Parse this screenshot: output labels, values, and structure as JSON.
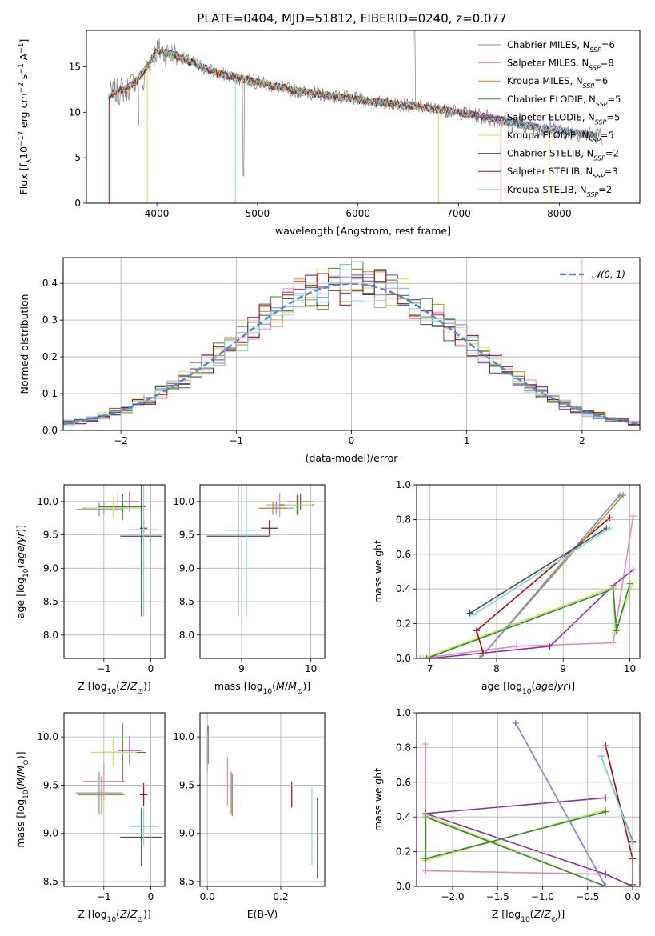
{
  "title": "PLATE=0404, MJD=51812, FIBERID=0240, z=0.077",
  "colors": {
    "chab_miles": "#6f8fdc",
    "salp_miles": "#e38ac0",
    "krou_miles": "#c48a1a",
    "chab_elodie": "#2e8b2e",
    "salp_elodie": "#8e2ea8",
    "krou_elodie": "#c8e650",
    "chab_stelib": "#4a4a4a",
    "salp_stelib": "#b00a0a",
    "krou_stelib": "#84d8e8",
    "data": "#808080",
    "normal": "#4f86d8",
    "grid": "#b0b0b0"
  },
  "chart_data": [
    {
      "id": "spectrum",
      "type": "line",
      "title": "PLATE=0404, MJD=51812, FIBERID=0240, z=0.077",
      "xlabel": "wavelength [Angstrom, rest frame]",
      "ylabel": "Flux [f_λ10^-17 erg cm^-2 s^-1 A^-1]",
      "xlim": [
        3300,
        8800
      ],
      "ylim": [
        0,
        19
      ],
      "xticks": [
        4000,
        5000,
        6000,
        7000,
        8000
      ],
      "yticks": [
        0,
        5,
        10,
        15
      ],
      "grid": false,
      "legend_placement": "top-right",
      "continuum": {
        "x": [
          3520,
          3600,
          3700,
          3800,
          3900,
          4000,
          4200,
          4400,
          4600,
          4800,
          5000,
          5200,
          5400,
          5600,
          5800,
          6000,
          6200,
          6400,
          6600,
          6800,
          7000,
          7200,
          7400,
          7600,
          7800,
          8000,
          8200,
          8400
        ],
        "y": [
          11.8,
          12.2,
          12.6,
          13.5,
          15.0,
          16.8,
          16.2,
          15.2,
          14.3,
          13.8,
          13.3,
          12.8,
          12.3,
          12.0,
          11.7,
          11.4,
          11.1,
          10.9,
          10.6,
          10.3,
          10.0,
          9.6,
          9.2,
          8.7,
          8.3,
          8.0,
          7.7,
          7.4
        ]
      },
      "series": [
        {
          "name": "Chabrier MILES, N_SSP=6",
          "color_key": "chab_miles"
        },
        {
          "name": "Salpeter MILES, N_SSP=8",
          "color_key": "salp_miles"
        },
        {
          "name": "Kroupa MILES, N_SSP=6",
          "color_key": "krou_miles"
        },
        {
          "name": "Chabrier ELODIE, N_SSP=5",
          "color_key": "chab_elodie"
        },
        {
          "name": "Salpeter ELODIE, N_SSP=5",
          "color_key": "salp_elodie"
        },
        {
          "name": "Kroupa ELODIE, N_SSP=5",
          "color_key": "krou_elodie"
        },
        {
          "name": "Chabrier STELIB, N_SSP=2",
          "color_key": "chab_stelib"
        },
        {
          "name": "Salpeter STELIB, N_SSP=3",
          "color_key": "salp_stelib"
        },
        {
          "name": "Kroupa STELIB, N_SSP=2",
          "color_key": "krou_stelib"
        }
      ]
    },
    {
      "id": "residuals",
      "type": "line",
      "xlabel": "(data-model)/error",
      "ylabel": "Normed distribution",
      "xlim": [
        -2.5,
        2.5
      ],
      "ylim": [
        0,
        0.47
      ],
      "xticks": [
        -2,
        -1,
        0,
        1,
        2
      ],
      "yticks": [
        0.0,
        0.1,
        0.2,
        0.3,
        0.4
      ],
      "grid": true,
      "legend_placement": "top-right",
      "legend": "𝒩(0, 1)",
      "bin_width": 0.1
    },
    {
      "id": "age_vs_Z",
      "type": "scatter",
      "xlabel": "Z [log10(Z/Z⊙)]",
      "ylabel": "age [log10(age/yr)]",
      "xlim": [
        -1.85,
        0.3
      ],
      "ylim": [
        7.65,
        10.25
      ],
      "xticks": [
        -1,
        0
      ],
      "yticks": [
        8.0,
        8.5,
        9.0,
        9.5,
        10.0
      ],
      "grid": true,
      "points": [
        {
          "c": "chab_miles",
          "x": -1.1,
          "y": 9.88,
          "xe": 0.5,
          "ye": 0.1
        },
        {
          "c": "salp_miles",
          "x": -0.7,
          "y": 10.0,
          "xe": 0.45,
          "ye": 0.15
        },
        {
          "c": "krou_miles",
          "x": -1.0,
          "y": 9.9,
          "xe": 0.45,
          "ye": 0.1
        },
        {
          "c": "chab_elodie",
          "x": -0.6,
          "y": 9.92,
          "xe": 0.5,
          "ye": 0.2
        },
        {
          "c": "salp_elodie",
          "x": -0.45,
          "y": 10.0,
          "xe": 0.2,
          "ye": 0.15
        },
        {
          "c": "krou_elodie",
          "x": -0.8,
          "y": 9.9,
          "xe": 0.6,
          "ye": 0.15
        },
        {
          "c": "chab_stelib",
          "x": -0.2,
          "y": 9.48,
          "xe": 0.45,
          "ye": 1.2
        },
        {
          "c": "salp_stelib",
          "x": -0.15,
          "y": 9.6,
          "xe": 0.08,
          "ye": 0.12
        },
        {
          "c": "krou_stelib",
          "x": -0.15,
          "y": 9.58,
          "xe": 0.3,
          "ye": 1.3
        }
      ]
    },
    {
      "id": "age_vs_mass",
      "type": "scatter",
      "xlabel": "mass [log10(M/M⊙)]",
      "ylabel": "",
      "xlim": [
        8.4,
        10.2
      ],
      "ylim": [
        7.65,
        10.25
      ],
      "xticks": [
        9,
        10
      ],
      "yticks": [
        8.0,
        8.5,
        9.0,
        9.5,
        10.0
      ],
      "grid": true,
      "points": [
        {
          "c": "chab_miles",
          "x": 9.5,
          "y": 9.9,
          "xe": 0.25,
          "ye": 0.1
        },
        {
          "c": "salp_miles",
          "x": 9.55,
          "y": 9.95,
          "xe": 0.2,
          "ye": 0.18
        },
        {
          "c": "krou_miles",
          "x": 9.45,
          "y": 9.9,
          "xe": 0.2,
          "ye": 0.1
        },
        {
          "c": "chab_elodie",
          "x": 9.8,
          "y": 9.95,
          "xe": 0.25,
          "ye": 0.15
        },
        {
          "c": "salp_elodie",
          "x": 9.85,
          "y": 10.0,
          "xe": 0.2,
          "ye": 0.12
        },
        {
          "c": "krou_elodie",
          "x": 9.82,
          "y": 9.95,
          "xe": 0.2,
          "ye": 0.15
        },
        {
          "c": "chab_stelib",
          "x": 8.95,
          "y": 9.48,
          "xe": 0.45,
          "ye": 1.2
        },
        {
          "c": "salp_stelib",
          "x": 9.4,
          "y": 9.6,
          "xe": 0.12,
          "ye": 0.12
        },
        {
          "c": "krou_stelib",
          "x": 9.07,
          "y": 9.57,
          "xe": 0.3,
          "ye": 1.3
        }
      ]
    },
    {
      "id": "massweight_vs_age",
      "type": "line",
      "xlabel": "age [log10(age/yr)]",
      "ylabel": "mass weight",
      "xlim": [
        6.8,
        10.15
      ],
      "ylim": [
        0,
        1
      ],
      "xticks": [
        7,
        8,
        9,
        10
      ],
      "yticks": [
        0.0,
        0.2,
        0.4,
        0.6,
        0.8,
        1.0
      ],
      "grid": true,
      "series": [
        {
          "c": "salp_miles",
          "x": [
            10.05,
            9.75,
            8.3,
            6.85
          ],
          "y": [
            0.82,
            0.09,
            0.07,
            0.0
          ]
        },
        {
          "c": "salp_elodie",
          "x": [
            10.05,
            9.75,
            8.8,
            7.0
          ],
          "y": [
            0.51,
            0.42,
            0.07,
            0.0
          ]
        },
        {
          "c": "krou_elodie",
          "x": [
            10.05,
            9.78,
            9.75,
            6.9
          ],
          "y": [
            0.44,
            0.15,
            0.41,
            0.0
          ]
        },
        {
          "c": "chab_elodie",
          "x": [
            10.0,
            9.8,
            9.75,
            6.95
          ],
          "y": [
            0.43,
            0.16,
            0.4,
            0.0
          ]
        },
        {
          "c": "salp_stelib",
          "x": [
            9.7,
            7.7,
            7.8
          ],
          "y": [
            0.81,
            0.16,
            0.03
          ]
        },
        {
          "c": "krou_miles",
          "x": [
            9.9,
            7.75
          ],
          "y": [
            0.94,
            0.0
          ]
        },
        {
          "c": "chab_miles",
          "x": [
            9.85,
            7.75
          ],
          "y": [
            0.94,
            0.0
          ]
        },
        {
          "c": "chab_stelib",
          "x": [
            9.65,
            7.6
          ],
          "y": [
            0.75,
            0.26
          ]
        },
        {
          "c": "krou_stelib",
          "x": [
            9.7,
            7.65
          ],
          "y": [
            0.75,
            0.25
          ]
        }
      ]
    },
    {
      "id": "mass_vs_Z",
      "type": "scatter",
      "xlabel": "Z [log10(Z/Z⊙)]",
      "ylabel": "mass [log10(M/M⊙)]",
      "xlim": [
        -1.85,
        0.3
      ],
      "ylim": [
        8.45,
        10.25
      ],
      "xticks": [
        -1,
        0
      ],
      "yticks": [
        8.5,
        9.0,
        9.5,
        10.0
      ],
      "grid": true,
      "points": [
        {
          "c": "chab_miles",
          "x": -1.1,
          "y": 9.42,
          "xe": 0.5,
          "ye": 0.22
        },
        {
          "c": "salp_miles",
          "x": -1.0,
          "y": 9.54,
          "xe": 0.45,
          "ye": 0.2
        },
        {
          "c": "krou_miles",
          "x": -1.05,
          "y": 9.4,
          "xe": 0.5,
          "ye": 0.2
        },
        {
          "c": "chab_elodie",
          "x": -0.6,
          "y": 9.84,
          "xe": 0.5,
          "ye": 0.3
        },
        {
          "c": "salp_elodie",
          "x": -0.45,
          "y": 9.86,
          "xe": 0.25,
          "ye": 0.15
        },
        {
          "c": "krou_elodie",
          "x": -0.8,
          "y": 9.84,
          "xe": 0.5,
          "ye": 0.15
        },
        {
          "c": "chab_stelib",
          "x": -0.2,
          "y": 8.96,
          "xe": 0.45,
          "ye": 0.3
        },
        {
          "c": "salp_stelib",
          "x": -0.15,
          "y": 9.4,
          "xe": 0.08,
          "ye": 0.12
        },
        {
          "c": "krou_stelib",
          "x": -0.15,
          "y": 9.07,
          "xe": 0.3,
          "ye": 0.2
        }
      ]
    },
    {
      "id": "mass_vs_ebv",
      "type": "scatter",
      "xlabel": "E(B-V)",
      "ylabel": "",
      "xlim": [
        -0.02,
        0.32
      ],
      "ylim": [
        8.45,
        10.25
      ],
      "xticks": [
        0.0,
        0.2
      ],
      "yticks": [
        8.5,
        9.0,
        9.5,
        10.0
      ],
      "grid": true,
      "points": [
        {
          "c": "chab_miles",
          "x": 0.065,
          "y": 9.42,
          "xe": 0,
          "ye": 0.22
        },
        {
          "c": "salp_miles",
          "x": 0.055,
          "y": 9.54,
          "xe": 0,
          "ye": 0.25
        },
        {
          "c": "krou_miles",
          "x": 0.068,
          "y": 9.4,
          "xe": 0,
          "ye": 0.22
        },
        {
          "c": "chab_elodie",
          "x": 0.0,
          "y": 9.84,
          "xe": 0,
          "ye": 0.2
        },
        {
          "c": "salp_elodie",
          "x": 0.002,
          "y": 9.92,
          "xe": 0,
          "ye": 0.2
        },
        {
          "c": "krou_elodie",
          "x": 0.0,
          "y": 9.84,
          "xe": 0,
          "ye": 0.2
        },
        {
          "c": "chab_stelib",
          "x": 0.3,
          "y": 8.95,
          "xe": 0,
          "ye": 0.42
        },
        {
          "c": "salp_stelib",
          "x": 0.23,
          "y": 9.4,
          "xe": 0,
          "ye": 0.13
        },
        {
          "c": "krou_stelib",
          "x": 0.285,
          "y": 9.07,
          "xe": 0,
          "ye": 0.4
        }
      ]
    },
    {
      "id": "massweight_vs_Z",
      "type": "line",
      "xlabel": "Z [log10(Z/Z⊙)]",
      "ylabel": "mass weight",
      "xlim": [
        -2.4,
        0.08
      ],
      "ylim": [
        0,
        1
      ],
      "xticks": [
        -2.0,
        -1.5,
        -1.0,
        -0.5,
        0.0
      ],
      "yticks": [
        0.0,
        0.2,
        0.4,
        0.6,
        0.8,
        1.0
      ],
      "grid": true,
      "series": [
        {
          "c": "salp_miles",
          "x": [
            -2.3,
            -2.3,
            -0.3,
            0.0
          ],
          "y": [
            0.82,
            0.09,
            0.07,
            0.0
          ]
        },
        {
          "c": "salp_elodie",
          "x": [
            -0.3,
            -2.3,
            -0.3,
            0.0
          ],
          "y": [
            0.51,
            0.42,
            0.07,
            0.0
          ]
        },
        {
          "c": "krou_elodie",
          "x": [
            -0.3,
            -2.3,
            -2.3,
            -0.3,
            0.0
          ],
          "y": [
            0.44,
            0.15,
            0.41,
            0.0,
            0.0
          ]
        },
        {
          "c": "chab_elodie",
          "x": [
            -0.3,
            -2.3,
            -2.3,
            -0.3,
            0.0
          ],
          "y": [
            0.43,
            0.16,
            0.4,
            0.0,
            0.0
          ]
        },
        {
          "c": "salp_stelib",
          "x": [
            -0.3,
            0.0,
            0.0
          ],
          "y": [
            0.81,
            0.16,
            0.01
          ]
        },
        {
          "c": "krou_miles",
          "x": [
            -1.3,
            -0.3,
            0.0
          ],
          "y": [
            0.94,
            0.0,
            0.0
          ]
        },
        {
          "c": "chab_miles",
          "x": [
            -1.3,
            -0.3,
            0.0
          ],
          "y": [
            0.94,
            0.0,
            0.0
          ]
        },
        {
          "c": "chab_stelib",
          "x": [
            -0.35,
            0.0
          ],
          "y": [
            0.75,
            0.26
          ]
        },
        {
          "c": "krou_stelib",
          "x": [
            -0.35,
            0.0
          ],
          "y": [
            0.75,
            0.25
          ]
        }
      ]
    }
  ]
}
